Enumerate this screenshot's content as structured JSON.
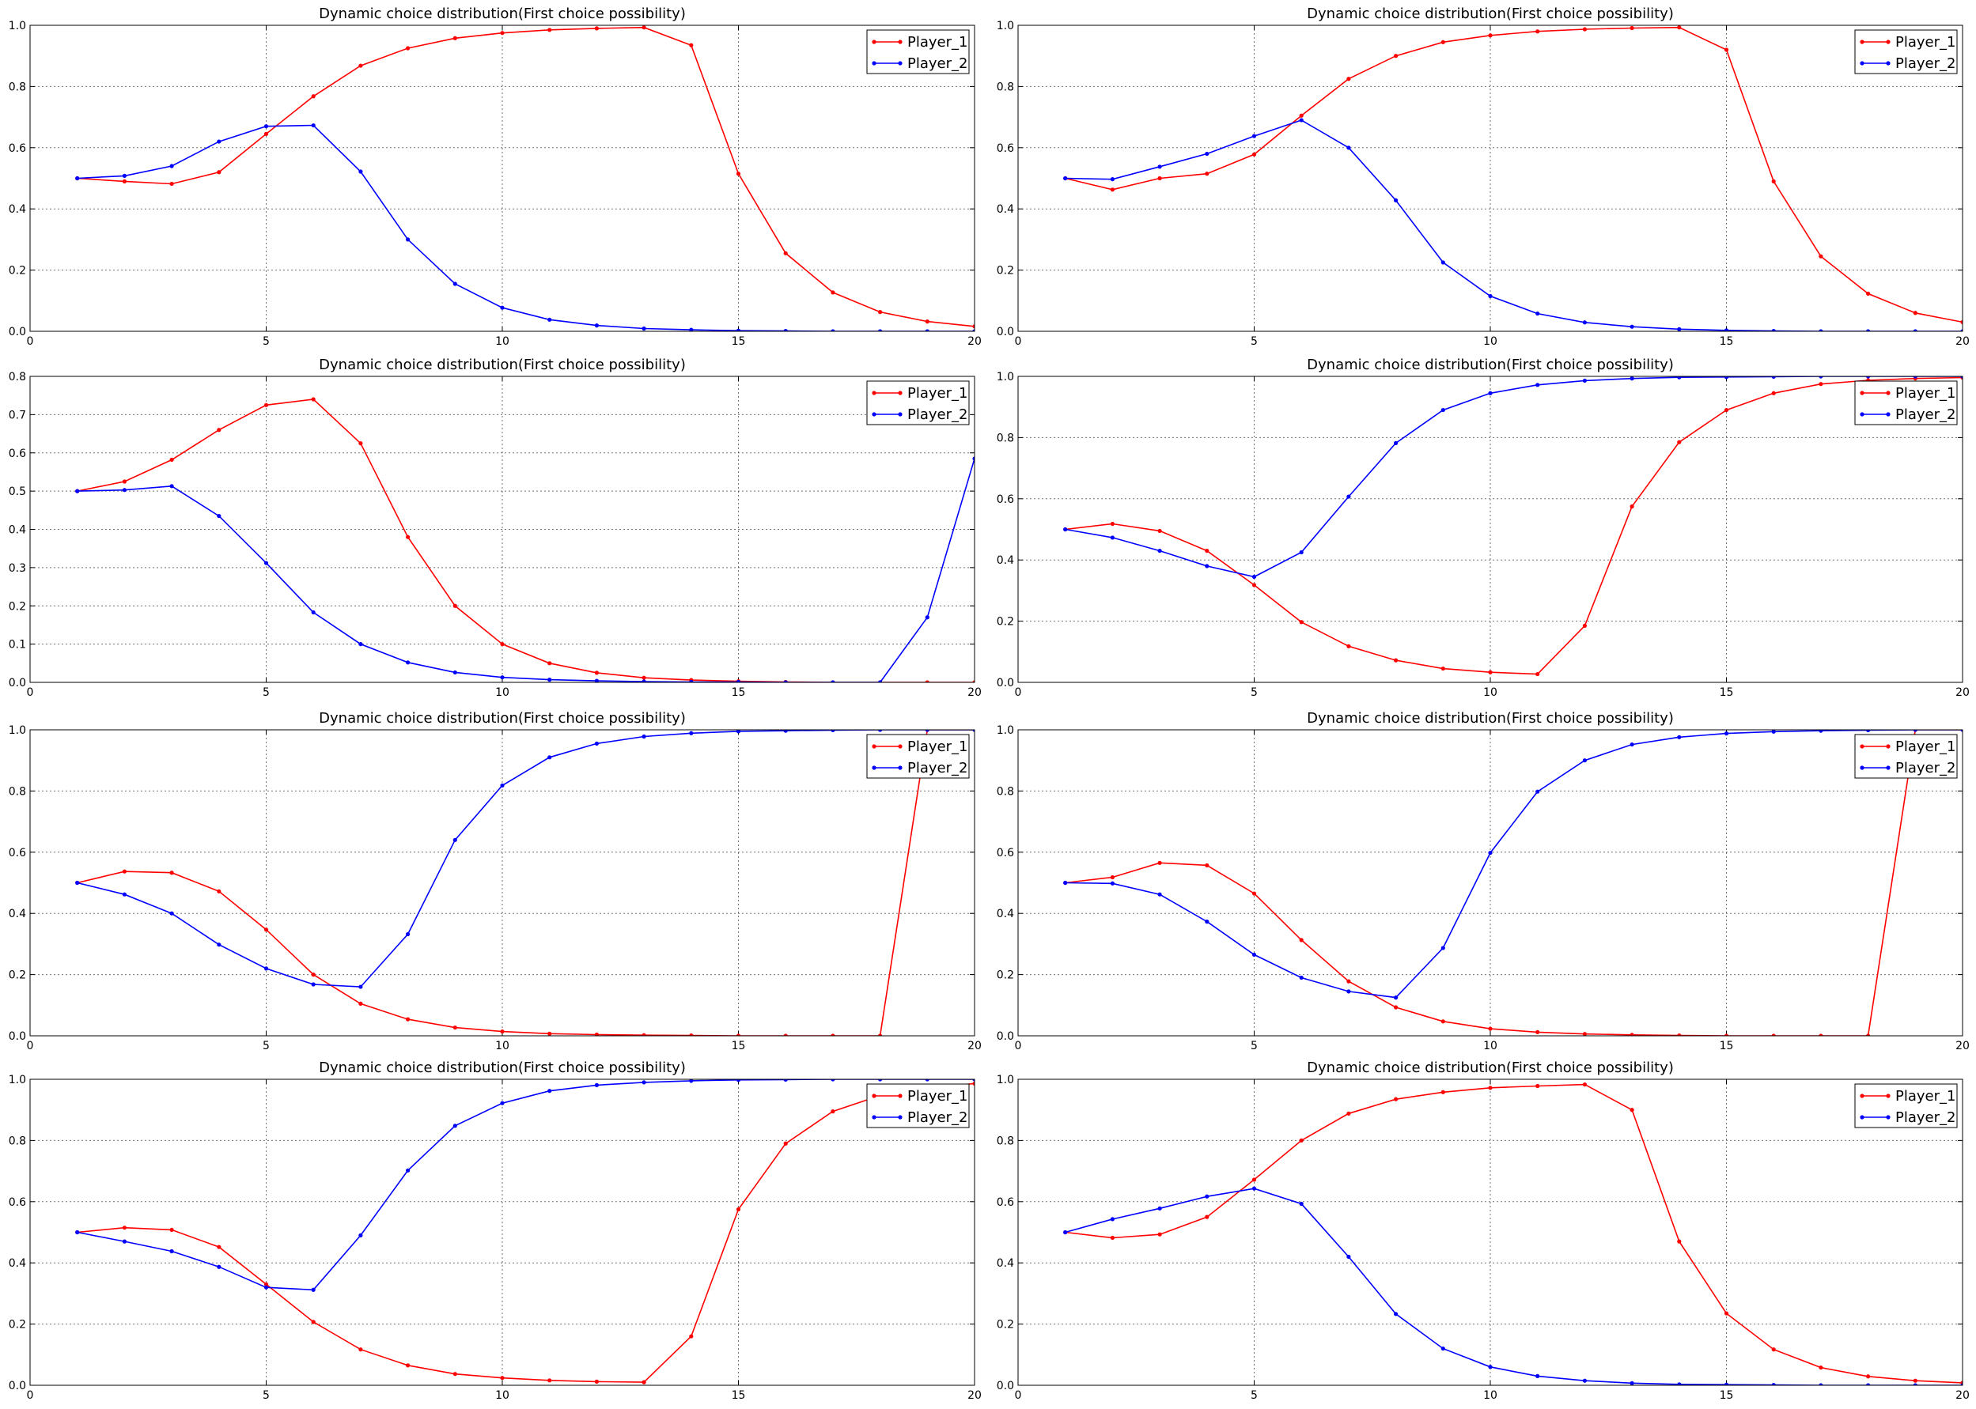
{
  "chart_data": [
    {
      "type": "line",
      "title": "Dynamic choice distribution(First choice possibility)",
      "x": [
        1,
        2,
        3,
        4,
        5,
        6,
        7,
        8,
        9,
        10,
        11,
        12,
        13,
        14,
        15,
        16,
        17,
        18,
        19,
        20
      ],
      "xlim": [
        0,
        20
      ],
      "xticks": [
        0,
        5,
        10,
        15,
        20
      ],
      "ylim": [
        0,
        1.0
      ],
      "yticks": [
        0.0,
        0.2,
        0.4,
        0.6,
        0.8,
        1.0
      ],
      "ydecimals": 1,
      "grid": true,
      "legend": "top-right",
      "series": [
        {
          "name": "Player_1",
          "color": "#ff0000",
          "values": [
            0.5,
            0.49,
            0.482,
            0.52,
            0.645,
            0.768,
            0.868,
            0.925,
            0.958,
            0.975,
            0.985,
            0.99,
            0.993,
            0.935,
            0.515,
            0.255,
            0.127,
            0.063,
            0.032,
            0.016
          ]
        },
        {
          "name": "Player_2",
          "color": "#0000ff",
          "values": [
            0.5,
            0.508,
            0.54,
            0.62,
            0.67,
            0.673,
            0.522,
            0.3,
            0.155,
            0.077,
            0.038,
            0.019,
            0.009,
            0.005,
            0.002,
            0.001,
            0.0,
            0.0,
            0.0,
            0.0
          ]
        }
      ]
    },
    {
      "type": "line",
      "title": "Dynamic choice distribution(First choice possibility)",
      "x": [
        1,
        2,
        3,
        4,
        5,
        6,
        7,
        8,
        9,
        10,
        11,
        12,
        13,
        14,
        15,
        16,
        17,
        18,
        19,
        20
      ],
      "xlim": [
        0,
        20
      ],
      "xticks": [
        0,
        5,
        10,
        15,
        20
      ],
      "ylim": [
        0,
        1.0
      ],
      "yticks": [
        0.0,
        0.2,
        0.4,
        0.6,
        0.8,
        1.0
      ],
      "ydecimals": 1,
      "grid": true,
      "legend": "top-right",
      "series": [
        {
          "name": "Player_1",
          "color": "#ff0000",
          "values": [
            0.5,
            0.463,
            0.5,
            0.515,
            0.578,
            0.705,
            0.825,
            0.9,
            0.945,
            0.967,
            0.98,
            0.987,
            0.991,
            0.993,
            0.92,
            0.49,
            0.245,
            0.123,
            0.06,
            0.03
          ]
        },
        {
          "name": "Player_2",
          "color": "#0000ff",
          "values": [
            0.5,
            0.497,
            0.538,
            0.58,
            0.638,
            0.69,
            0.6,
            0.428,
            0.225,
            0.115,
            0.058,
            0.029,
            0.015,
            0.007,
            0.003,
            0.001,
            0.0,
            0.0,
            0.0,
            0.0
          ]
        }
      ]
    },
    {
      "type": "line",
      "title": "Dynamic choice distribution(First choice possibility)",
      "x": [
        1,
        2,
        3,
        4,
        5,
        6,
        7,
        8,
        9,
        10,
        11,
        12,
        13,
        14,
        15,
        16,
        17,
        18,
        19,
        20
      ],
      "xlim": [
        0,
        20
      ],
      "xticks": [
        0,
        5,
        10,
        15,
        20
      ],
      "ylim": [
        0,
        0.8
      ],
      "yticks": [
        0.0,
        0.1,
        0.2,
        0.3,
        0.4,
        0.5,
        0.6,
        0.7,
        0.8
      ],
      "ydecimals": 1,
      "grid": true,
      "legend": "top-right",
      "series": [
        {
          "name": "Player_1",
          "color": "#ff0000",
          "values": [
            0.5,
            0.525,
            0.582,
            0.66,
            0.725,
            0.74,
            0.625,
            0.38,
            0.2,
            0.1,
            0.05,
            0.025,
            0.012,
            0.006,
            0.003,
            0.001,
            0.0,
            0.0,
            0.0,
            0.0
          ]
        },
        {
          "name": "Player_2",
          "color": "#0000ff",
          "values": [
            0.5,
            0.503,
            0.513,
            0.435,
            0.312,
            0.183,
            0.1,
            0.052,
            0.026,
            0.013,
            0.007,
            0.004,
            0.002,
            0.001,
            0.001,
            0.0,
            0.0,
            0.0,
            0.17,
            0.585
          ]
        }
      ]
    },
    {
      "type": "line",
      "title": "Dynamic choice distribution(First choice possibility)",
      "x": [
        1,
        2,
        3,
        4,
        5,
        6,
        7,
        8,
        9,
        10,
        11,
        12,
        13,
        14,
        15,
        16,
        17,
        18,
        19,
        20
      ],
      "xlim": [
        0,
        20
      ],
      "xticks": [
        0,
        5,
        10,
        15,
        20
      ],
      "ylim": [
        0,
        1.0
      ],
      "yticks": [
        0.0,
        0.2,
        0.4,
        0.6,
        0.8,
        1.0
      ],
      "ydecimals": 1,
      "grid": true,
      "legend": "top-right",
      "series": [
        {
          "name": "Player_1",
          "color": "#ff0000",
          "values": [
            0.5,
            0.518,
            0.495,
            0.43,
            0.318,
            0.197,
            0.118,
            0.072,
            0.045,
            0.033,
            0.027,
            0.185,
            0.575,
            0.785,
            0.89,
            0.945,
            0.975,
            0.987,
            0.993,
            0.996
          ]
        },
        {
          "name": "Player_2",
          "color": "#0000ff",
          "values": [
            0.5,
            0.473,
            0.43,
            0.38,
            0.345,
            0.425,
            0.607,
            0.782,
            0.89,
            0.945,
            0.972,
            0.986,
            0.993,
            0.997,
            0.998,
            0.999,
            1.0,
            1.0,
            1.0,
            1.0
          ]
        }
      ]
    },
    {
      "type": "line",
      "title": "Dynamic choice distribution(First choice possibility)",
      "x": [
        1,
        2,
        3,
        4,
        5,
        6,
        7,
        8,
        9,
        10,
        11,
        12,
        13,
        14,
        15,
        16,
        17,
        18,
        19,
        20
      ],
      "xlim": [
        0,
        20
      ],
      "xticks": [
        0,
        5,
        10,
        15,
        20
      ],
      "ylim": [
        0,
        1.0
      ],
      "yticks": [
        0.0,
        0.2,
        0.4,
        0.6,
        0.8,
        1.0
      ],
      "ydecimals": 1,
      "grid": true,
      "legend": "top-right",
      "series": [
        {
          "name": "Player_1",
          "color": "#ff0000",
          "values": [
            0.5,
            0.537,
            0.533,
            0.472,
            0.347,
            0.2,
            0.105,
            0.054,
            0.027,
            0.014,
            0.007,
            0.004,
            0.002,
            0.001,
            0.0,
            0.0,
            0.0,
            0.0,
            1.0,
            1.0
          ]
        },
        {
          "name": "Player_2",
          "color": "#0000ff",
          "values": [
            0.5,
            0.462,
            0.4,
            0.298,
            0.22,
            0.168,
            0.16,
            0.332,
            0.64,
            0.818,
            0.91,
            0.955,
            0.978,
            0.989,
            0.995,
            0.997,
            0.999,
            1.0,
            1.0,
            1.0
          ]
        }
      ]
    },
    {
      "type": "line",
      "title": "Dynamic choice distribution(First choice possibility)",
      "x": [
        1,
        2,
        3,
        4,
        5,
        6,
        7,
        8,
        9,
        10,
        11,
        12,
        13,
        14,
        15,
        16,
        17,
        18,
        19,
        20
      ],
      "xlim": [
        0,
        20
      ],
      "xticks": [
        0,
        5,
        10,
        15,
        20
      ],
      "ylim": [
        0,
        1.0
      ],
      "yticks": [
        0.0,
        0.2,
        0.4,
        0.6,
        0.8,
        1.0
      ],
      "ydecimals": 1,
      "grid": true,
      "legend": "top-right",
      "series": [
        {
          "name": "Player_1",
          "color": "#ff0000",
          "values": [
            0.5,
            0.518,
            0.565,
            0.557,
            0.465,
            0.313,
            0.178,
            0.093,
            0.047,
            0.023,
            0.012,
            0.006,
            0.003,
            0.001,
            0.0,
            0.0,
            0.0,
            0.0,
            1.0,
            1.0
          ]
        },
        {
          "name": "Player_2",
          "color": "#0000ff",
          "values": [
            0.5,
            0.498,
            0.462,
            0.373,
            0.265,
            0.19,
            0.145,
            0.125,
            0.287,
            0.598,
            0.798,
            0.9,
            0.952,
            0.976,
            0.988,
            0.994,
            0.997,
            0.999,
            1.0,
            1.0
          ]
        }
      ]
    },
    {
      "type": "line",
      "title": "Dynamic choice distribution(First choice possibility)",
      "x": [
        1,
        2,
        3,
        4,
        5,
        6,
        7,
        8,
        9,
        10,
        11,
        12,
        13,
        14,
        15,
        16,
        17,
        18,
        19,
        20
      ],
      "xlim": [
        0,
        20
      ],
      "xticks": [
        0,
        5,
        10,
        15,
        20
      ],
      "ylim": [
        0,
        1.0
      ],
      "yticks": [
        0.0,
        0.2,
        0.4,
        0.6,
        0.8,
        1.0
      ],
      "ydecimals": 1,
      "grid": true,
      "legend": "top-right",
      "series": [
        {
          "name": "Player_1",
          "color": "#ff0000",
          "values": [
            0.5,
            0.515,
            0.508,
            0.452,
            0.33,
            0.207,
            0.117,
            0.065,
            0.037,
            0.024,
            0.016,
            0.012,
            0.01,
            0.16,
            0.575,
            0.79,
            0.895,
            0.947,
            0.973,
            0.986
          ]
        },
        {
          "name": "Player_2",
          "color": "#0000ff",
          "values": [
            0.5,
            0.47,
            0.438,
            0.387,
            0.32,
            0.312,
            0.49,
            0.702,
            0.848,
            0.922,
            0.962,
            0.981,
            0.99,
            0.995,
            0.998,
            0.999,
            1.0,
            1.0,
            1.0,
            1.0
          ]
        }
      ]
    },
    {
      "type": "line",
      "title": "Dynamic choice distribution(First choice possibility)",
      "x": [
        1,
        2,
        3,
        4,
        5,
        6,
        7,
        8,
        9,
        10,
        11,
        12,
        13,
        14,
        15,
        16,
        17,
        18,
        19,
        20
      ],
      "xlim": [
        0,
        20
      ],
      "xticks": [
        0,
        5,
        10,
        15,
        20
      ],
      "ylim": [
        0,
        1.0
      ],
      "yticks": [
        0.0,
        0.2,
        0.4,
        0.6,
        0.8,
        1.0
      ],
      "ydecimals": 1,
      "grid": true,
      "legend": "top-right",
      "series": [
        {
          "name": "Player_1",
          "color": "#ff0000",
          "values": [
            0.5,
            0.482,
            0.493,
            0.55,
            0.672,
            0.8,
            0.888,
            0.935,
            0.958,
            0.972,
            0.978,
            0.983,
            0.9,
            0.47,
            0.235,
            0.117,
            0.058,
            0.029,
            0.015,
            0.008
          ]
        },
        {
          "name": "Player_2",
          "color": "#0000ff",
          "values": [
            0.5,
            0.543,
            0.578,
            0.617,
            0.643,
            0.593,
            0.42,
            0.233,
            0.12,
            0.06,
            0.03,
            0.015,
            0.007,
            0.003,
            0.002,
            0.001,
            0.0,
            0.0,
            0.0,
            0.0
          ]
        }
      ]
    }
  ]
}
